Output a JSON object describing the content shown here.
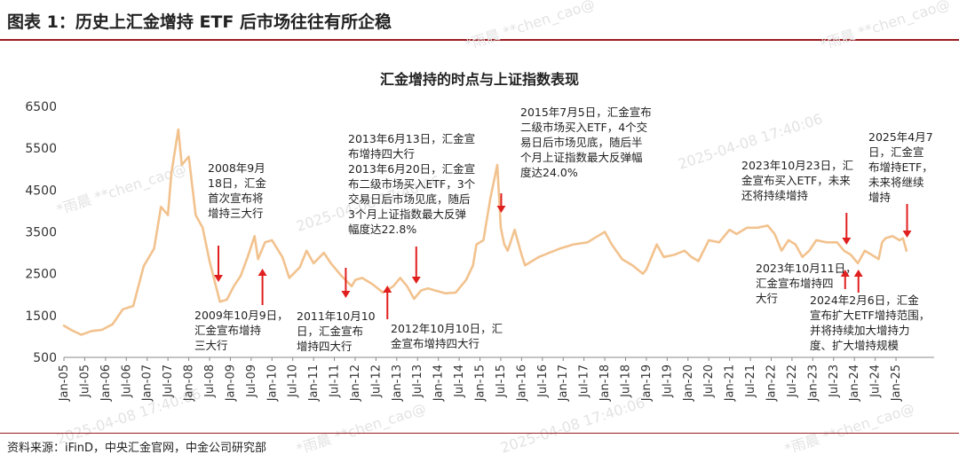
{
  "figure_title": "图表 1：历史上汇金增持 ETF 后市场往往有所企稳",
  "source_note": "资料来源：iFinD，中央汇金官网，中金公司研究部",
  "watermark": {
    "lines": [
      "*雨晨 **chen_cao@",
      "2025-04-08 17:40:06"
    ]
  },
  "colors": {
    "line": "#f2c28e",
    "arrow": "#e0201e",
    "rule": "#9b1c20",
    "axis": "#888888"
  },
  "chart_data": {
    "type": "line",
    "title": "汇金增持的时点与上证指数表现",
    "ylim": [
      500,
      6500
    ],
    "yticks": [
      500,
      1500,
      2500,
      3500,
      4500,
      5500,
      6500
    ],
    "xrange": [
      "2005-01",
      "2025-12"
    ],
    "x_tick_labels": [
      "Jan-05",
      "Jul-05",
      "Jan-06",
      "Jul-06",
      "Jan-07",
      "Jul-07",
      "Jan-08",
      "Jul-08",
      "Jan-09",
      "Jul-09",
      "Jan-10",
      "Jul-10",
      "Jan-11",
      "Jul-11",
      "Jan-12",
      "Jul-12",
      "Jan-13",
      "Jul-13",
      "Jan-14",
      "Jul-14",
      "Jan-15",
      "Jul-15",
      "Jan-16",
      "Jul-16",
      "Jan-17",
      "Jul-17",
      "Jan-18",
      "Jul-18",
      "Jan-19",
      "Jul-19",
      "Jan-20",
      "Jul-20",
      "Jan-21",
      "Jul-21",
      "Jan-22",
      "Jul-22",
      "Jan-23",
      "Jul-23",
      "Jan-24",
      "Jul-24",
      "Jan-25"
    ],
    "series": [
      {
        "x": [
          "2005-01",
          "2005-03",
          "2005-06",
          "2005-09",
          "2005-12",
          "2006-03",
          "2006-06",
          "2006-09",
          "2006-12",
          "2007-03",
          "2007-05",
          "2007-07",
          "2007-08",
          "2007-10",
          "2007-11",
          "2008-01",
          "2008-03",
          "2008-05",
          "2008-07",
          "2008-09",
          "2008-10",
          "2008-12",
          "2009-02",
          "2009-04",
          "2009-06",
          "2009-08",
          "2009-09",
          "2009-11",
          "2010-01",
          "2010-04",
          "2010-06",
          "2010-09",
          "2010-11",
          "2011-01",
          "2011-04",
          "2011-06",
          "2011-09",
          "2011-12",
          "2012-01",
          "2012-03",
          "2012-06",
          "2012-09",
          "2012-12",
          "2013-02",
          "2013-04",
          "2013-06",
          "2013-08",
          "2013-10",
          "2013-12",
          "2014-03",
          "2014-06",
          "2014-09",
          "2014-11",
          "2014-12",
          "2015-02",
          "2015-04",
          "2015-06",
          "2015-07",
          "2015-08",
          "2015-09",
          "2015-11",
          "2016-01",
          "2016-02",
          "2016-06",
          "2016-09",
          "2016-12",
          "2017-04",
          "2017-08",
          "2017-11",
          "2018-01",
          "2018-03",
          "2018-06",
          "2018-09",
          "2018-12",
          "2019-01",
          "2019-04",
          "2019-06",
          "2019-09",
          "2019-12",
          "2020-02",
          "2020-04",
          "2020-07",
          "2020-10",
          "2021-01",
          "2021-03",
          "2021-06",
          "2021-09",
          "2021-12",
          "2022-02",
          "2022-04",
          "2022-06",
          "2022-08",
          "2022-10",
          "2022-12",
          "2023-02",
          "2023-05",
          "2023-08",
          "2023-10",
          "2023-12",
          "2024-02",
          "2024-04",
          "2024-06",
          "2024-08",
          "2024-09",
          "2024-10",
          "2024-12",
          "2025-02",
          "2025-03",
          "2025-04"
        ],
        "y": [
          1260,
          1160,
          1040,
          1130,
          1160,
          1290,
          1650,
          1730,
          2680,
          3100,
          4100,
          3900,
          4900,
          5950,
          5100,
          5300,
          3900,
          3600,
          2800,
          2150,
          1830,
          1880,
          2200,
          2450,
          2900,
          3400,
          2850,
          3250,
          3300,
          2900,
          2400,
          2650,
          3050,
          2750,
          3000,
          2750,
          2450,
          2200,
          2350,
          2400,
          2250,
          2050,
          2200,
          2400,
          2200,
          1900,
          2100,
          2150,
          2100,
          2030,
          2050,
          2350,
          2700,
          3200,
          3300,
          4300,
          5100,
          3600,
          3200,
          3050,
          3550,
          2950,
          2700,
          2900,
          3000,
          3100,
          3200,
          3250,
          3400,
          3500,
          3200,
          2850,
          2700,
          2500,
          2600,
          3200,
          2900,
          2950,
          3050,
          2900,
          2800,
          3300,
          3250,
          3550,
          3450,
          3600,
          3600,
          3650,
          3450,
          3050,
          3300,
          3200,
          2900,
          3050,
          3300,
          3250,
          3250,
          3050,
          2950,
          2750,
          3050,
          2950,
          2850,
          3250,
          3350,
          3400,
          3300,
          3350,
          3050
        ]
      }
    ],
    "annotations": [
      {
        "text": "2008年9月\n18日，汇金\n首次宣布将\n增持三大行",
        "date": "2008-09-18",
        "direction": "down"
      },
      {
        "text": "2009年10月9日，\n汇金宣布增持\n三大行",
        "date": "2009-10-09",
        "direction": "up"
      },
      {
        "text": "2011年10月10\n日，汇金宣布\n增持四大行",
        "date": "2011-10-10",
        "direction": "down"
      },
      {
        "text": "2012年10月10日，汇\n金宣布增持四大行",
        "date": "2012-10-10",
        "direction": "up"
      },
      {
        "text": "2013年6月13日，汇金宣\n布增持四大行\n2013年6月20日，汇金宣\n布二级市场买入ETF，3个\n交易日后市场见底，随后\n3个月上证指数最大反弹\n幅度达22.8%",
        "date": "2013-06-20",
        "direction": "down"
      },
      {
        "text": "2015年7月5日，汇金宣布\n二级市场买入ETF，4个交\n易日后市场见底，随后半\n个月上证指数最大反弹幅\n度达24.0%",
        "date": "2015-07-05",
        "direction": "down"
      },
      {
        "text": "2023年10月23日，汇\n金宣布买入ETF，未来\n还将持续增持",
        "date": "2023-10-23",
        "direction": "down"
      },
      {
        "text": "2023年10月11日，\n汇金宣布增持四\n大行",
        "date": "2023-10-11",
        "direction": "up"
      },
      {
        "text": "2024年2月6日，汇金\n宣布扩大ETF增持范围，\n并将持续加大增持力\n度、扩大增持规模",
        "date": "2024-02-06",
        "direction": "up"
      },
      {
        "text": "2025年4月7\n日，汇金宣\n布增持ETF，\n未来将继续\n增持",
        "date": "2025-04-07",
        "direction": "down"
      }
    ]
  }
}
